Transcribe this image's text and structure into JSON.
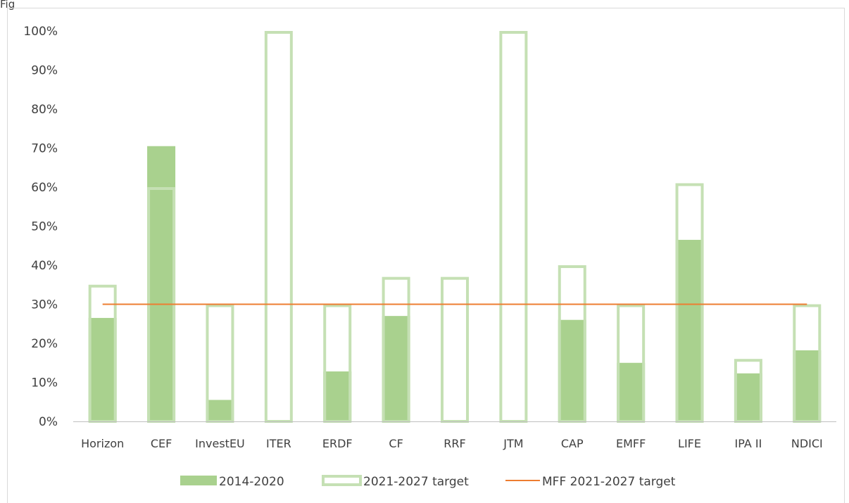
{
  "page_label": "Fig",
  "chart_data": {
    "type": "bar",
    "title": "",
    "xlabel": "",
    "ylabel": "",
    "ylim": [
      0,
      100
    ],
    "yticks": [
      "0%",
      "10%",
      "20%",
      "30%",
      "40%",
      "50%",
      "60%",
      "70%",
      "80%",
      "90%",
      "100%"
    ],
    "categories": [
      "Horizon",
      "CEF",
      "InvestEU",
      "ITER",
      "ERDF",
      "CF",
      "RRF",
      "JTM",
      "CAP",
      "EMFF",
      "LIFE",
      "IPA II",
      "NDICI"
    ],
    "series": [
      {
        "name": "2014-2020",
        "kind": "filled-bar",
        "color": "#a9d18e",
        "values": [
          26.5,
          70.5,
          5.5,
          0,
          12.8,
          27,
          0,
          0,
          26,
          15,
          46.5,
          12.3,
          18.2
        ]
      },
      {
        "name": "2021-2027 target",
        "kind": "outline-bar",
        "color": "#c5e0b4",
        "values": [
          35,
          60,
          30,
          100,
          30,
          37,
          37,
          100,
          40,
          30,
          61,
          16,
          30
        ]
      },
      {
        "name": "MFF 2021-2027 target",
        "kind": "line",
        "color": "#ed7d31",
        "values": [
          30,
          30,
          30,
          30,
          30,
          30,
          30,
          30,
          30,
          30,
          30,
          30,
          30
        ]
      }
    ],
    "grid": false,
    "legend_position": "bottom"
  }
}
